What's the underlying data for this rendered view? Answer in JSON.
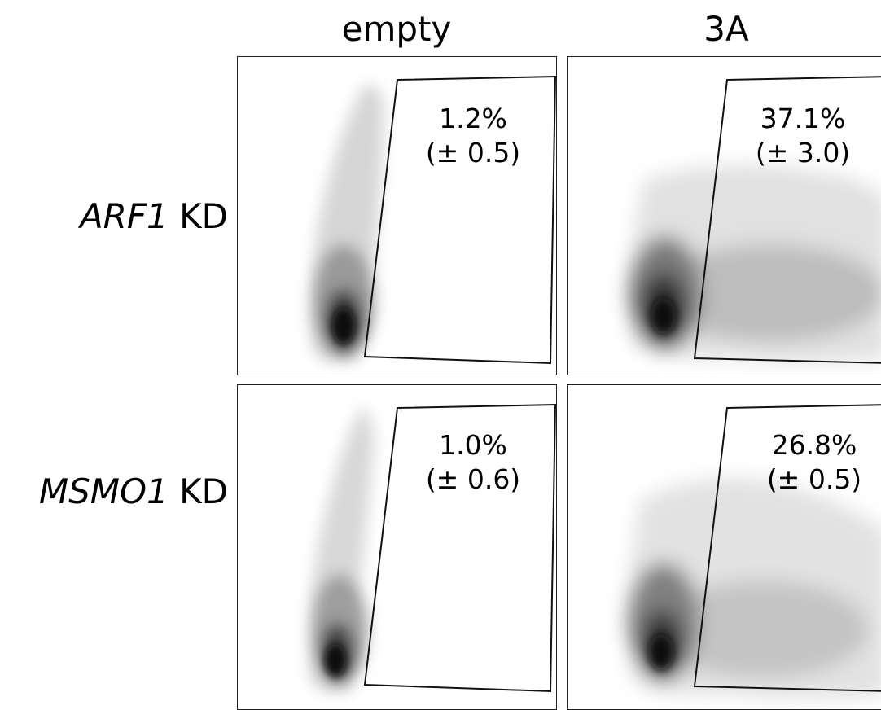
{
  "columns": [
    "empty",
    "3A"
  ],
  "rows": [
    {
      "gene": "ARF1",
      "suffix": "KD"
    },
    {
      "gene": "MSMO1",
      "suffix": "KD"
    }
  ],
  "chart_data": {
    "type": "density-grid",
    "panels": [
      {
        "row": 0,
        "col": 0,
        "percent": "1.2%",
        "sd": "(± 0.5)",
        "gated_fraction": 1.2
      },
      {
        "row": 0,
        "col": 1,
        "percent": "37.1%",
        "sd": "(± 3.0)",
        "gated_fraction": 37.1
      },
      {
        "row": 1,
        "col": 0,
        "percent": "1.0%",
        "sd": "(± 0.6)",
        "gated_fraction": 1.0
      },
      {
        "row": 1,
        "col": 1,
        "percent": "26.8%",
        "sd": "(± 0.5)",
        "gated_fraction": 26.8
      }
    ]
  }
}
